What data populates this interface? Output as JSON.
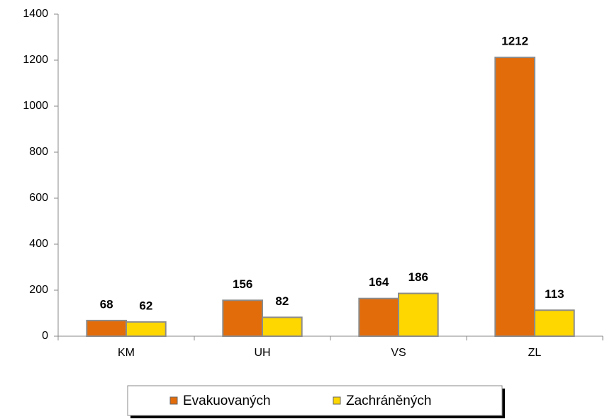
{
  "chart_data": {
    "type": "bar",
    "categories": [
      "KM",
      "UH",
      "VS",
      "ZL"
    ],
    "series": [
      {
        "name": "Evakuovaných",
        "color": "#e36c0a",
        "values": [
          68,
          156,
          164,
          1212
        ]
      },
      {
        "name": "Zachráněných",
        "color": "#ffd700",
        "values": [
          62,
          82,
          186,
          113
        ]
      }
    ],
    "ylim": [
      0,
      1400
    ],
    "yticks": [
      0,
      200,
      400,
      600,
      800,
      1000,
      1200,
      1400
    ],
    "legend": "bottom"
  }
}
